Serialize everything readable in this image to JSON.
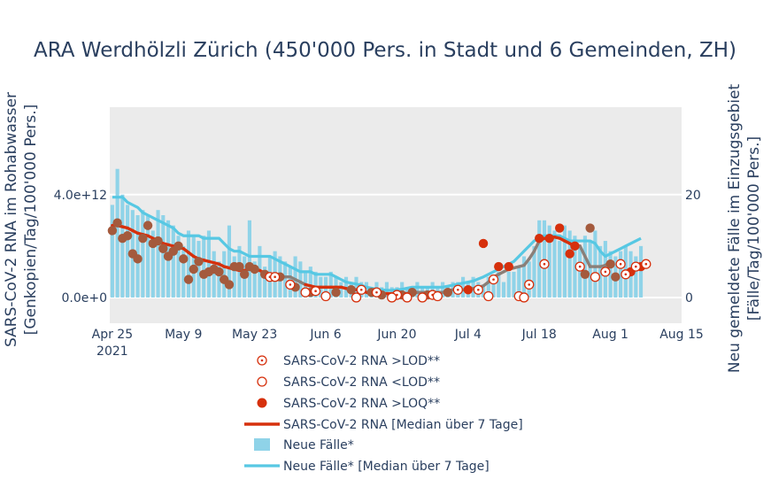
{
  "chart_data": {
    "type": "bar+line+scatter",
    "title": "ARA Werdhölzli Zürich (450'000 Pers. in Stadt und 6 Gemeinden, ZH)",
    "ylabel_left": [
      "SARS-CoV-2 RNA im Rohabwasser",
      "[Genkopien/Tag/100'000 Pers.]"
    ],
    "ylabel_right": [
      "Neu gemeldete Fälle im Einzugsgebiet",
      "[Fälle/Tag/100'000 Pers.]"
    ],
    "x_ticks": [
      {
        "day": 0,
        "label": "Apr 25",
        "sub": "2021"
      },
      {
        "day": 14,
        "label": "May 9",
        "sub": ""
      },
      {
        "day": 28,
        "label": "May 23",
        "sub": ""
      },
      {
        "day": 42,
        "label": "Jun 6",
        "sub": ""
      },
      {
        "day": 56,
        "label": "Jun 20",
        "sub": ""
      },
      {
        "day": 70,
        "label": "Jul 4",
        "sub": ""
      },
      {
        "day": 84,
        "label": "Jul 18",
        "sub": ""
      },
      {
        "day": 98,
        "label": "Aug 1",
        "sub": ""
      },
      {
        "day": 112,
        "label": "Aug 15",
        "sub": ""
      }
    ],
    "x_range": [
      -0.5,
      112
    ],
    "y_left_range": [
      -1000000000000.0,
      7400000000000.0
    ],
    "y_right_range": [
      -5,
      37
    ],
    "y_left_ticks": [
      {
        "value": 0,
        "label": "0.0e+0"
      },
      {
        "value": 4000000000000.0,
        "label": "4.0e+12"
      }
    ],
    "y_right_ticks": [
      {
        "value": 0,
        "label": "0"
      },
      {
        "value": 20,
        "label": "20"
      }
    ],
    "cases_start_day": 0,
    "cases": [
      18,
      25,
      20,
      18,
      17,
      16,
      17,
      16,
      13,
      17,
      16,
      15,
      14,
      12,
      10,
      13,
      12,
      11,
      12,
      13,
      9,
      7,
      9,
      14,
      8,
      10,
      8,
      15,
      7,
      10,
      6,
      8,
      9,
      8,
      7,
      6,
      8,
      7,
      5,
      6,
      5,
      4,
      4,
      5,
      4,
      3,
      4,
      3,
      4,
      3,
      3,
      2,
      3,
      2,
      3,
      2,
      2,
      3,
      2,
      2,
      3,
      2,
      2,
      3,
      2,
      3,
      2,
      3,
      3,
      4,
      3,
      4,
      3,
      2,
      4,
      4,
      5,
      3,
      5,
      5,
      6,
      8,
      7,
      10,
      15,
      15,
      14,
      13,
      11,
      14,
      13,
      12,
      10,
      12,
      11,
      13,
      10,
      11,
      9,
      8,
      9,
      10,
      9,
      8,
      10
    ],
    "cases_median": [
      19.5,
      19.5,
      19.5,
      18.5,
      18,
      17.5,
      16.5,
      16,
      15.5,
      15,
      14.5,
      14,
      13.5,
      12.5,
      12,
      12,
      12,
      12,
      11.5,
      11.5,
      11.5,
      11.5,
      10.5,
      9.5,
      9,
      9,
      8.5,
      8,
      8,
      8,
      8,
      8,
      7.5,
      7,
      6.5,
      6,
      5.5,
      5,
      5,
      5,
      4.5,
      4.5,
      4.5,
      4.5,
      4,
      3.5,
      3,
      2.8,
      2.6,
      2.4,
      2,
      1.8,
      1.6,
      1.5,
      1.4,
      1.4,
      1.5,
      1.6,
      1.8,
      2,
      2,
      2,
      2,
      2,
      2,
      2,
      2.2,
      2.4,
      2.6,
      2.8,
      3,
      3.2,
      3.6,
      4,
      4.5,
      5,
      5.5,
      6,
      6.5,
      7,
      8,
      9,
      10,
      11,
      11.5,
      12,
      12,
      12,
      12,
      11.5,
      11,
      11,
      11,
      11,
      11,
      10.5,
      9,
      8,
      8.5,
      9,
      9.5,
      10,
      10.5,
      11,
      11.5
    ],
    "rna_median_start_day": 0,
    "rna_median": [
      2800000000000.0,
      2800000000000.0,
      2750000000000.0,
      2700000000000.0,
      2600000000000.0,
      2500000000000.0,
      2450000000000.0,
      2400000000000.0,
      2300000000000.0,
      2200000000000.0,
      2100000000000.0,
      2050000000000.0,
      2000000000000.0,
      1950000000000.0,
      1900000000000.0,
      1750000000000.0,
      1600000000000.0,
      1500000000000.0,
      1450000000000.0,
      1400000000000.0,
      1350000000000.0,
      1300000000000.0,
      1200000000000.0,
      1150000000000.0,
      1100000000000.0,
      1050000000000.0,
      1050000000000.0,
      1100000000000.0,
      1100000000000.0,
      1050000000000.0,
      950000000000.0,
      900000000000.0,
      850000000000.0,
      850000000000.0,
      800000000000.0,
      800000000000.0,
      700000000000.0,
      600000000000.0,
      500000000000.0,
      450000000000.0,
      400000000000.0,
      400000000000.0,
      400000000000.0,
      400000000000.0,
      400000000000.0,
      400000000000.0,
      350000000000.0,
      300000000000.0,
      300000000000.0,
      250000000000.0,
      200000000000.0,
      150000000000.0,
      150000000000.0,
      150000000000.0,
      150000000000.0,
      150000000000.0,
      150000000000.0,
      150000000000.0,
      150000000000.0,
      150000000000.0,
      200000000000.0,
      200000000000.0,
      200000000000.0,
      200000000000.0,
      200000000000.0,
      200000000000.0,
      250000000000.0,
      300000000000.0,
      300000000000.0,
      300000000000.0,
      300000000000.0,
      350000000000.0,
      400000000000.0,
      450000000000.0,
      600000000000.0,
      800000000000.0,
      900000000000.0,
      1000000000000.0,
      1100000000000.0,
      1150000000000.0,
      1200000000000.0,
      1250000000000.0,
      1500000000000.0,
      1800000000000.0,
      2200000000000.0,
      2300000000000.0,
      2300000000000.0,
      2350000000000.0,
      2300000000000.0,
      2200000000000.0,
      2100000000000.0,
      2000000000000.0,
      2000000000000.0,
      1600000000000.0,
      1200000000000.0,
      1200000000000.0,
      1200000000000.0,
      1250000000000.0,
      1400000000000.0
    ],
    "rna_lod": [
      [
        31,
        800000000000.0
      ],
      [
        32,
        800000000000.0
      ],
      [
        35,
        500000000000.0
      ],
      [
        40,
        250000000000.0
      ],
      [
        49,
        300000000000.0
      ],
      [
        52,
        200000000000.0
      ],
      [
        56,
        100000000000.0
      ],
      [
        63,
        100000000000.0
      ],
      [
        68,
        300000000000.0
      ],
      [
        72,
        300000000000.0
      ],
      [
        75,
        700000000000.0
      ],
      [
        82,
        500000000000.0
      ],
      [
        85,
        1300000000000.0
      ],
      [
        92,
        1200000000000.0
      ],
      [
        97,
        1000000000000.0
      ],
      [
        100,
        1300000000000.0
      ],
      [
        101,
        900000000000.0
      ],
      [
        103,
        1200000000000.0
      ],
      [
        105,
        1300000000000.0
      ]
    ],
    "rna_ltlod": [
      [
        38,
        200000000000.0
      ],
      [
        42,
        50000000000.0
      ],
      [
        48,
        0.0
      ],
      [
        55,
        0.0
      ],
      [
        58,
        0.0
      ],
      [
        61,
        0.0
      ],
      [
        64,
        50000000000.0
      ],
      [
        74,
        50000000000.0
      ],
      [
        80,
        50000000000.0
      ],
      [
        81,
        0.0
      ],
      [
        95,
        800000000000.0
      ]
    ],
    "rna_loq": [
      [
        0,
        2600000000000.0
      ],
      [
        2,
        2300000000000.0
      ],
      [
        4,
        1700000000000.0
      ],
      [
        6,
        2300000000000.0
      ],
      [
        8,
        2100000000000.0
      ],
      [
        10,
        1900000000000.0
      ],
      [
        12,
        1800000000000.0
      ],
      [
        14,
        1500000000000.0
      ],
      [
        16,
        1100000000000.0
      ],
      [
        18,
        900000000000.0
      ],
      [
        20,
        1100000000000.0
      ],
      [
        22,
        700000000000.0
      ],
      [
        24,
        1200000000000.0
      ],
      [
        26,
        900000000000.0
      ],
      [
        28,
        1100000000000.0
      ],
      [
        30,
        900000000000.0
      ],
      [
        33,
        800000000000.0
      ],
      [
        36,
        400000000000.0
      ],
      [
        39,
        200000000000.0
      ],
      [
        44,
        200000000000.0
      ],
      [
        47,
        300000000000.0
      ],
      [
        51,
        200000000000.0
      ],
      [
        53,
        100000000000.0
      ],
      [
        57,
        100000000000.0
      ],
      [
        59,
        200000000000.0
      ],
      [
        62,
        100000000000.0
      ],
      [
        66,
        200000000000.0
      ],
      [
        70,
        300000000000.0
      ],
      [
        73,
        2100000000000.0
      ],
      [
        76,
        1200000000000.0
      ],
      [
        78,
        1200000000000.0
      ],
      [
        84,
        2300000000000.0
      ],
      [
        86,
        2300000000000.0
      ],
      [
        88,
        2700000000000.0
      ],
      [
        90,
        1700000000000.0
      ],
      [
        91,
        2000000000000.0
      ],
      [
        93,
        900000000000.0
      ],
      [
        94,
        2700000000000.0
      ],
      [
        98,
        1300000000000.0
      ],
      [
        99,
        800000000000.0
      ],
      [
        102,
        1000000000000.0
      ],
      [
        104,
        1200000000000.0
      ],
      [
        1,
        2900000000000.0
      ],
      [
        3,
        2400000000000.0
      ],
      [
        5,
        1500000000000.0
      ],
      [
        7,
        2800000000000.0
      ],
      [
        9,
        2200000000000.0
      ],
      [
        11,
        1600000000000.0
      ],
      [
        13,
        2000000000000.0
      ],
      [
        15,
        700000000000.0
      ],
      [
        17,
        1400000000000.0
      ],
      [
        19,
        1000000000000.0
      ],
      [
        21,
        1000000000000.0
      ],
      [
        23,
        500000000000.0
      ],
      [
        25,
        1200000000000.0
      ],
      [
        27,
        1200000000000.0
      ]
    ],
    "legend": {
      "lod": "SARS-CoV-2 RNA >LOD**",
      "ltlod": "SARS-CoV-2 RNA <LOD**",
      "loq": "SARS-CoV-2 RNA >LOQ**",
      "median": "SARS-CoV-2 RNA [Median über 7 Tage]",
      "cases": "Neue Fälle*",
      "cases_median": "Neue Fälle* [Median über 7 Tage]"
    },
    "colors": {
      "bar": "#8fd3e8",
      "cases_line": "#57c8e3",
      "rna": "#d6300c",
      "rna_dot": "#a45a3d",
      "median_grey": "#8a7f78",
      "plot_bg": "#ebebeb",
      "text": "#2a3f5f"
    }
  }
}
